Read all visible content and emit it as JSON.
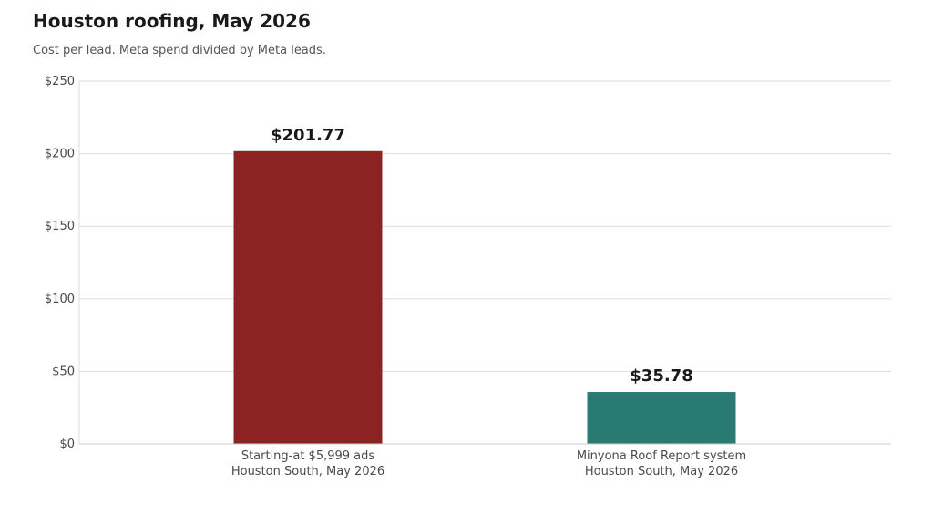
{
  "chart_data": {
    "type": "bar",
    "title": "Houston roofing, May 2026",
    "subtitle": "Cost per lead. Meta spend divided by Meta leads.",
    "categories": [
      [
        "Starting-at $5,999 ads",
        "Houston South, May 2026"
      ],
      [
        "Minyona Roof Report system",
        "Houston South, May 2026"
      ]
    ],
    "values": [
      201.77,
      35.78
    ],
    "data_labels": [
      "$201.77",
      "$35.78"
    ],
    "colors": [
      "#8b2323",
      "#2a7a74"
    ],
    "ylim": [
      0,
      250
    ],
    "yticks": [
      0,
      50,
      100,
      150,
      200,
      250
    ],
    "ytick_labels": [
      "$0",
      "$50",
      "$100",
      "$150",
      "$200",
      "$250"
    ],
    "grid": true,
    "xlabel": "",
    "ylabel": ""
  }
}
